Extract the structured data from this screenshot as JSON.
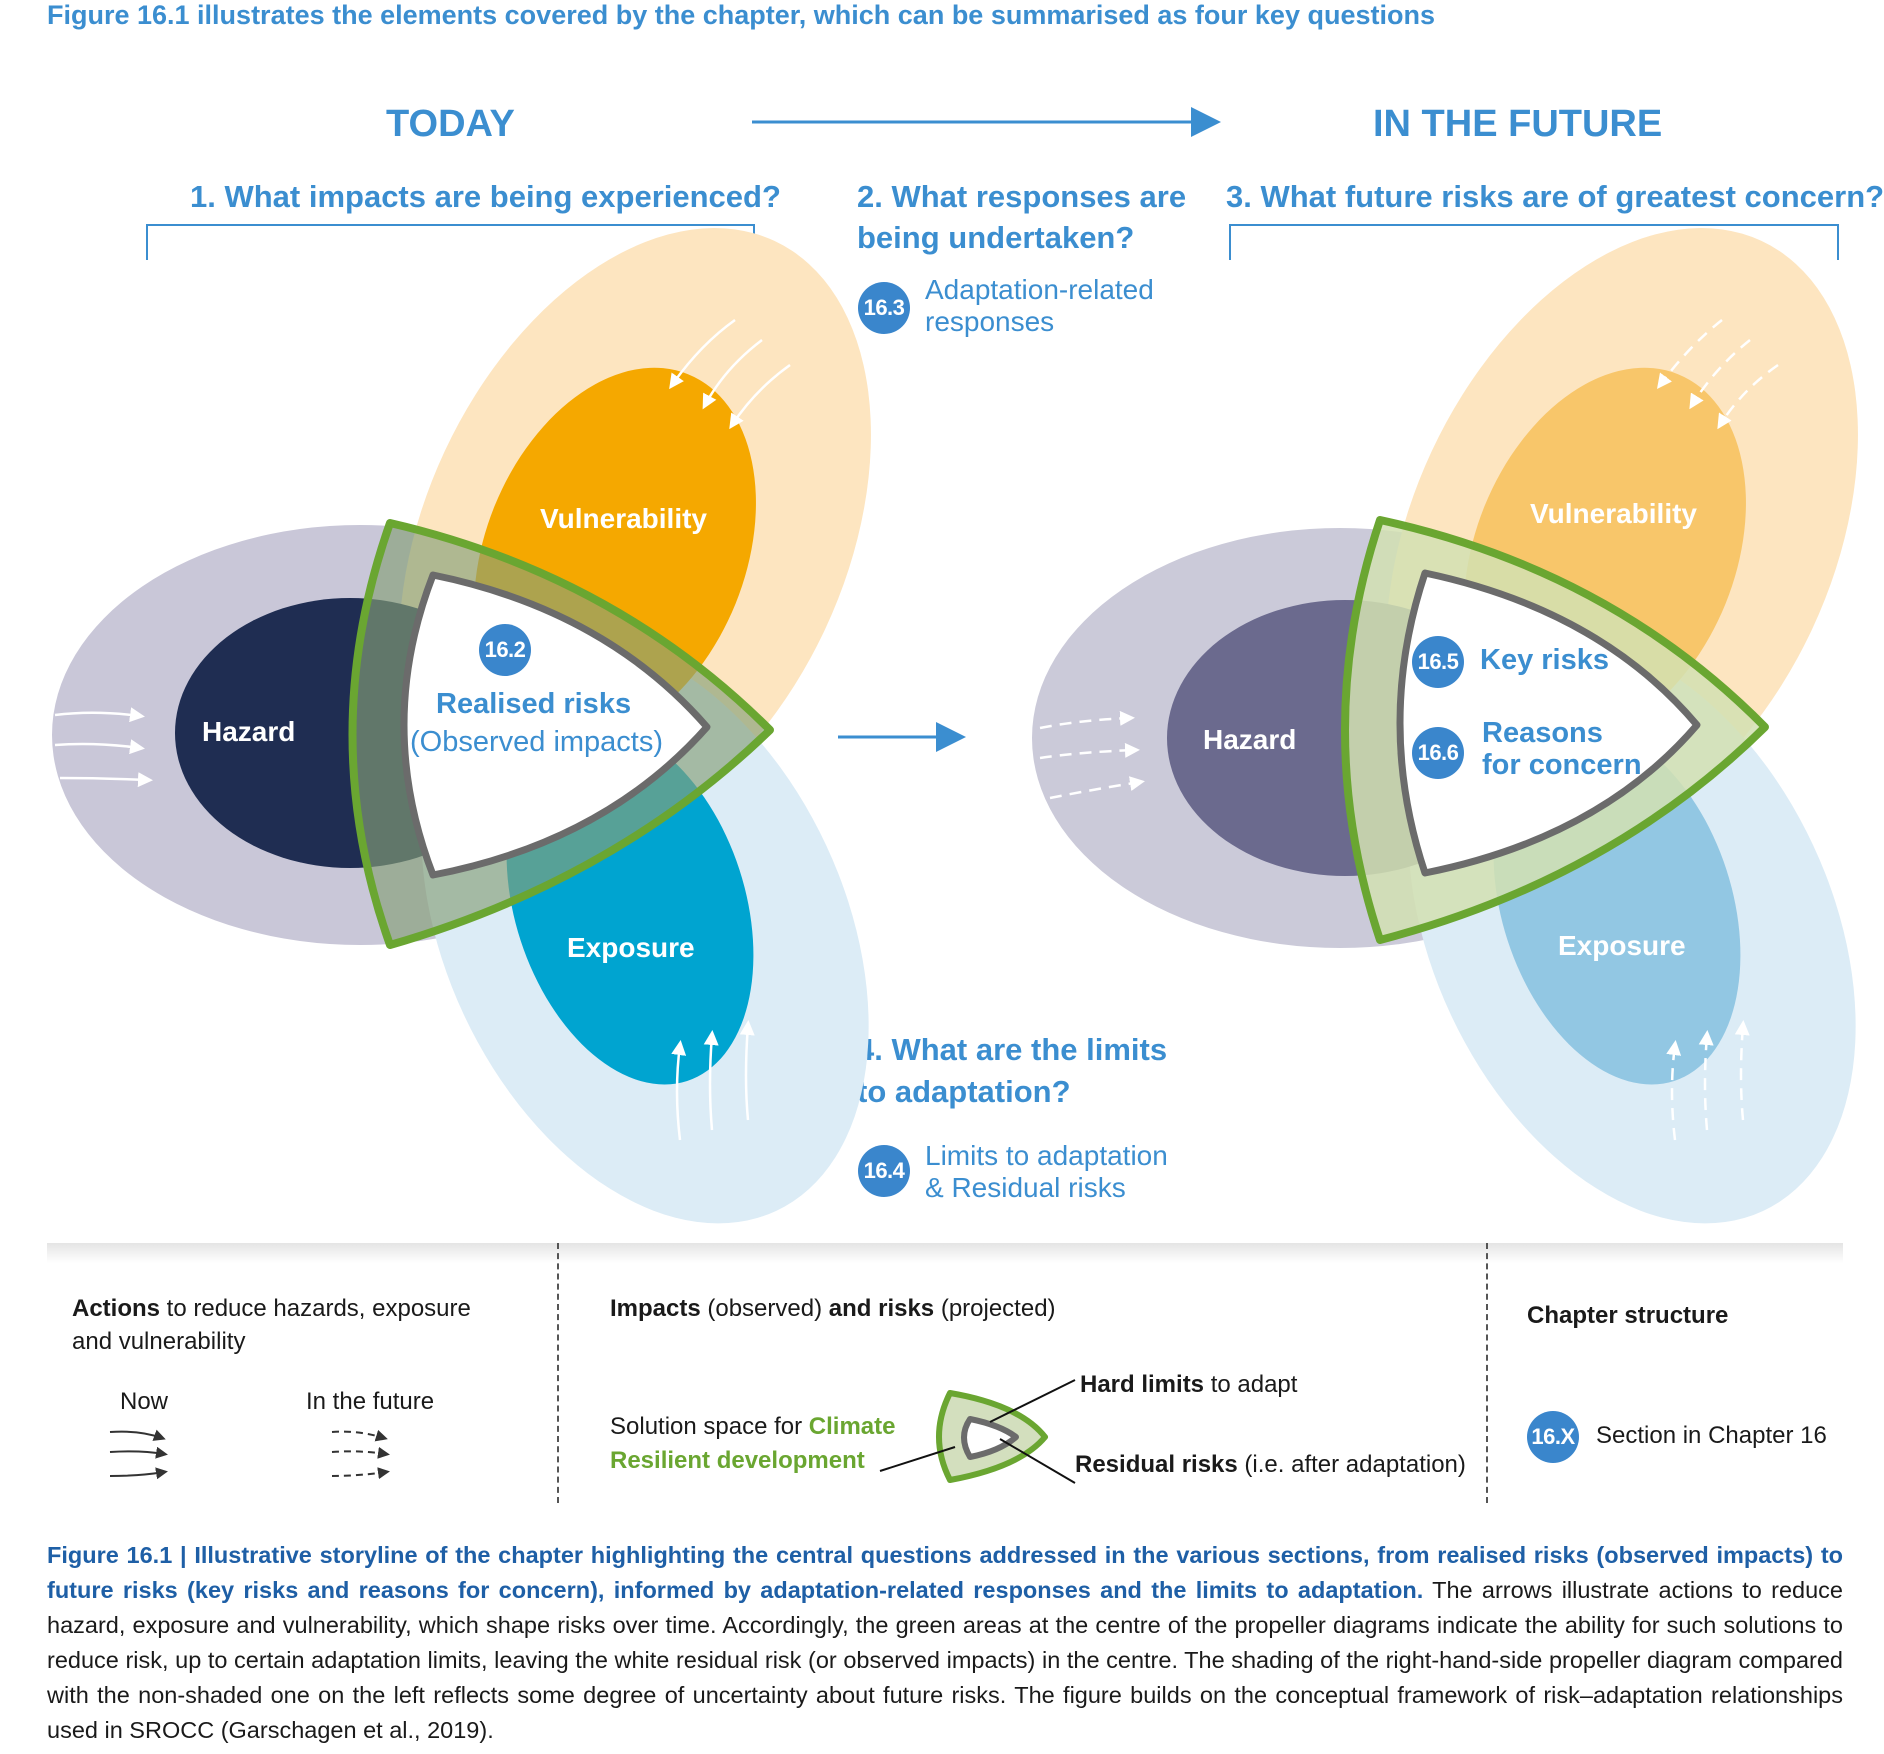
{
  "header": {
    "intro": "Figure 16.1 illustrates the elements covered by the chapter, which can be summarised as four key questions",
    "today": "TODAY",
    "future": "IN THE FUTURE"
  },
  "questions": {
    "q1": "1. What impacts are being experienced?",
    "q2_line1": "2. What responses are",
    "q2_line2": "being undertaken?",
    "q3": "3. What future risks are of greatest concern?",
    "q4_line1": "4. What are the limits",
    "q4_line2": "to adaptation?"
  },
  "refs": {
    "r163": {
      "badge": "16.3",
      "line1": "Adaptation-related",
      "line2": "responses"
    },
    "r164": {
      "badge": "16.4",
      "line1": "Limits to adaptation",
      "line2": "& Residual risks"
    }
  },
  "left_diagram": {
    "hazard": "Hazard",
    "vulnerability": "Vulnerability",
    "exposure": "Exposure",
    "badge": "16.2",
    "center_line1": "Realised risks",
    "center_line2": "(Observed impacts)"
  },
  "right_diagram": {
    "hazard": "Hazard",
    "vulnerability": "Vulnerability",
    "exposure": "Exposure",
    "badge1": "16.5",
    "item1": "Key risks",
    "badge2": "16.6",
    "item2_line1": "Reasons",
    "item2_line2": "for concern"
  },
  "legend": {
    "actions_bold": "Actions",
    "actions_rest1": " to reduce hazards, exposure",
    "actions_rest2": "and vulnerability",
    "now": "Now",
    "in_future": "In the future",
    "impacts_bold": "Impacts",
    "impacts_obs": " (observed) ",
    "and_risks_bold": "and risks",
    "projected": " (projected)",
    "solution_text": "Solution space for ",
    "climate": "Climate",
    "resilient": "Resilient development",
    "hard_limits_bold": "Hard limits",
    "hard_limits_rest": " to adapt",
    "residual_bold": "Residual risks",
    "residual_rest": " (i.e. after adaptation)",
    "chapter_structure": "Chapter structure",
    "badge_x": "16.X",
    "section_text": "Section in Chapter 16"
  },
  "caption": {
    "label": "Figure 16.1 |",
    "title": " Illustrative storyline of the chapter highlighting the central questions addressed in the various sections, from realised risks (observed impacts) to future risks (key risks and reasons for concern), informed by adaptation-related responses and the limits to adaptation.",
    "body": " The arrows illustrate actions to reduce hazard, exposure and vulnerability, which shape risks over time. Accordingly, the green areas at the centre of the propeller diagrams indicate the ability for such solutions to reduce risk, up to certain adaptation limits, leaving the white residual risk (or observed impacts) in the centre. The shading of the right-hand-side propeller diagram compared with the non-shaded one on the left reflects some degree of uncertainty about future risks. The figure builds on the conceptual framework of risk–adaptation relationships used in SROCC (Garschagen et al., 2019)."
  },
  "colors": {
    "accent_blue": "#3b8ed0",
    "badge_blue": "#3a86cc",
    "green": "#6aa631",
    "hazard_today": "#1f2d52",
    "vulnerability_today": "#f5a800",
    "exposure_today": "#00a4d0",
    "hazard_future": "#6b6a8e",
    "vulnerability_future": "#f8c66a",
    "exposure_future": "#92c7e3"
  }
}
